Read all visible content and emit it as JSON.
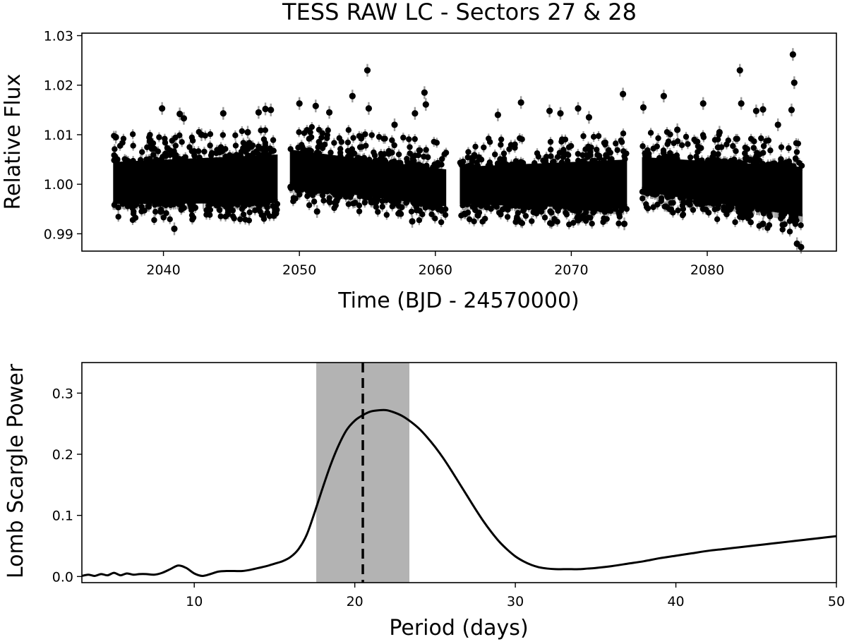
{
  "chart_data": [
    {
      "type": "scatter",
      "title": "TESS RAW LC - Sectors 27 & 28",
      "xlabel": "Time (BJD - 24570000)",
      "ylabel": "Relative Flux",
      "xlim": [
        2034,
        2089.5
      ],
      "ylim": [
        0.9865,
        1.0305
      ],
      "xticks": [
        2040,
        2050,
        2060,
        2070,
        2080
      ],
      "xtick_labels": [
        "2040",
        "2050",
        "2060",
        "2070",
        "2080"
      ],
      "yticks": [
        0.99,
        1.0,
        1.01,
        1.02,
        1.03
      ],
      "ytick_labels": [
        "0.99",
        "1.00",
        "1.01",
        "1.02",
        "1.03"
      ],
      "point_color": "#000000",
      "errorbar_color": "#9a9a9a",
      "segments": [
        {
          "start": 2036.3,
          "end": 2048.4,
          "lower_start": 0.996,
          "lower_end": 0.9962,
          "upper_start": 1.0045,
          "upper_end": 1.006
        },
        {
          "start": 2049.3,
          "end": 2060.8,
          "lower_start": 0.9995,
          "lower_end": 0.9955,
          "upper_start": 1.007,
          "upper_end": 1.003
        },
        {
          "start": 2061.8,
          "end": 2074.1,
          "lower_start": 0.996,
          "lower_end": 0.995,
          "upper_start": 1.0035,
          "upper_end": 1.005
        },
        {
          "start": 2075.2,
          "end": 2087.0,
          "lower_start": 0.9985,
          "lower_end": 0.9935,
          "upper_start": 1.0055,
          "upper_end": 1.0035
        }
      ],
      "outliers": [
        {
          "x": 2039.9,
          "y": 1.0153
        },
        {
          "x": 2041.2,
          "y": 1.0142
        },
        {
          "x": 2041.5,
          "y": 1.0133
        },
        {
          "x": 2044.4,
          "y": 1.0143
        },
        {
          "x": 2047.0,
          "y": 1.0145
        },
        {
          "x": 2047.5,
          "y": 1.0152
        },
        {
          "x": 2047.9,
          "y": 1.015
        },
        {
          "x": 2050.0,
          "y": 1.0163
        },
        {
          "x": 2051.2,
          "y": 1.0158
        },
        {
          "x": 2053.9,
          "y": 1.0178
        },
        {
          "x": 2055.0,
          "y": 1.023
        },
        {
          "x": 2055.1,
          "y": 1.0153
        },
        {
          "x": 2059.2,
          "y": 1.0185
        },
        {
          "x": 2059.3,
          "y": 1.0161
        },
        {
          "x": 2058.5,
          "y": 1.0143
        },
        {
          "x": 2066.3,
          "y": 1.0165
        },
        {
          "x": 2068.4,
          "y": 1.0148
        },
        {
          "x": 2069.2,
          "y": 1.0143
        },
        {
          "x": 2070.5,
          "y": 1.0153
        },
        {
          "x": 2073.8,
          "y": 1.0182
        },
        {
          "x": 2075.3,
          "y": 1.0155
        },
        {
          "x": 2076.8,
          "y": 1.0178
        },
        {
          "x": 2079.7,
          "y": 1.0163
        },
        {
          "x": 2082.4,
          "y": 1.023
        },
        {
          "x": 2082.5,
          "y": 1.0163
        },
        {
          "x": 2083.6,
          "y": 1.0148
        },
        {
          "x": 2084.1,
          "y": 1.0151
        },
        {
          "x": 2086.3,
          "y": 1.0262
        },
        {
          "x": 2086.4,
          "y": 1.0205
        },
        {
          "x": 2086.2,
          "y": 1.015
        },
        {
          "x": 2036.5,
          "y": 1.0095
        },
        {
          "x": 2039.0,
          "y": 1.0087
        },
        {
          "x": 2042.8,
          "y": 1.01
        },
        {
          "x": 2046.2,
          "y": 1.0105
        },
        {
          "x": 2052.2,
          "y": 1.0145
        },
        {
          "x": 2057.0,
          "y": 1.012
        },
        {
          "x": 2064.6,
          "y": 1.014
        },
        {
          "x": 2071.3,
          "y": 1.0135
        },
        {
          "x": 2077.8,
          "y": 1.011
        },
        {
          "x": 2080.9,
          "y": 1.0105
        },
        {
          "x": 2085.2,
          "y": 1.012
        },
        {
          "x": 2040.8,
          "y": 0.991
        },
        {
          "x": 2051.3,
          "y": 0.9945
        },
        {
          "x": 2058.3,
          "y": 0.9925
        },
        {
          "x": 2066.0,
          "y": 0.993
        },
        {
          "x": 2073.9,
          "y": 0.992
        },
        {
          "x": 2084.1,
          "y": 0.992
        },
        {
          "x": 2086.6,
          "y": 0.988
        },
        {
          "x": 2086.9,
          "y": 0.9873
        }
      ]
    },
    {
      "type": "line",
      "xlabel": "Period (days)",
      "ylabel": "Lomb Scargle Power",
      "xlim": [
        3,
        50
      ],
      "ylim": [
        -0.01,
        0.35
      ],
      "xticks": [
        10,
        20,
        30,
        40,
        50
      ],
      "xtick_labels": [
        "10",
        "20",
        "30",
        "40",
        "50"
      ],
      "yticks": [
        0.0,
        0.1,
        0.2,
        0.3
      ],
      "ytick_labels": [
        "0.0",
        "0.1",
        "0.2",
        "0.3"
      ],
      "line_color": "#000000",
      "band": {
        "x0": 17.6,
        "x1": 23.4,
        "color": "#b3b3b3"
      },
      "vline": {
        "x": 20.5,
        "style": "dashed"
      },
      "series": [
        {
          "name": "power",
          "x": [
            3.0,
            3.4,
            3.8,
            4.2,
            4.6,
            5.0,
            5.4,
            5.8,
            6.2,
            6.6,
            7.0,
            7.5,
            8.0,
            8.5,
            9.0,
            9.5,
            10.0,
            10.5,
            11.0,
            11.5,
            12.0,
            12.5,
            13.0,
            13.5,
            14.0,
            14.5,
            15.0,
            15.5,
            16.0,
            16.5,
            17.0,
            17.5,
            18.0,
            18.5,
            19.0,
            19.5,
            20.0,
            20.5,
            21.0,
            21.5,
            22.0,
            22.5,
            23.0,
            23.5,
            24.0,
            24.5,
            25.0,
            25.5,
            26.0,
            26.5,
            27.0,
            27.5,
            28.0,
            28.5,
            29.0,
            29.5,
            30.0,
            30.5,
            31.0,
            31.5,
            32.0,
            32.5,
            33.0,
            33.5,
            34.0,
            34.5,
            35.0,
            36.0,
            37.0,
            38.0,
            39.0,
            40.0,
            41.0,
            42.0,
            43.0,
            44.0,
            45.0,
            46.0,
            47.0,
            48.0,
            49.0,
            50.0
          ],
          "y": [
            0.001,
            0.003,
            0.001,
            0.004,
            0.002,
            0.006,
            0.002,
            0.005,
            0.003,
            0.004,
            0.004,
            0.003,
            0.006,
            0.012,
            0.018,
            0.014,
            0.005,
            0.001,
            0.004,
            0.008,
            0.009,
            0.009,
            0.009,
            0.011,
            0.014,
            0.017,
            0.021,
            0.025,
            0.032,
            0.045,
            0.068,
            0.105,
            0.145,
            0.183,
            0.215,
            0.24,
            0.255,
            0.264,
            0.27,
            0.272,
            0.272,
            0.268,
            0.262,
            0.253,
            0.242,
            0.228,
            0.212,
            0.194,
            0.174,
            0.153,
            0.132,
            0.111,
            0.091,
            0.073,
            0.057,
            0.044,
            0.033,
            0.025,
            0.019,
            0.015,
            0.013,
            0.012,
            0.012,
            0.012,
            0.012,
            0.013,
            0.014,
            0.017,
            0.021,
            0.025,
            0.03,
            0.034,
            0.038,
            0.042,
            0.045,
            0.048,
            0.051,
            0.054,
            0.057,
            0.06,
            0.063,
            0.066
          ]
        }
      ]
    }
  ]
}
